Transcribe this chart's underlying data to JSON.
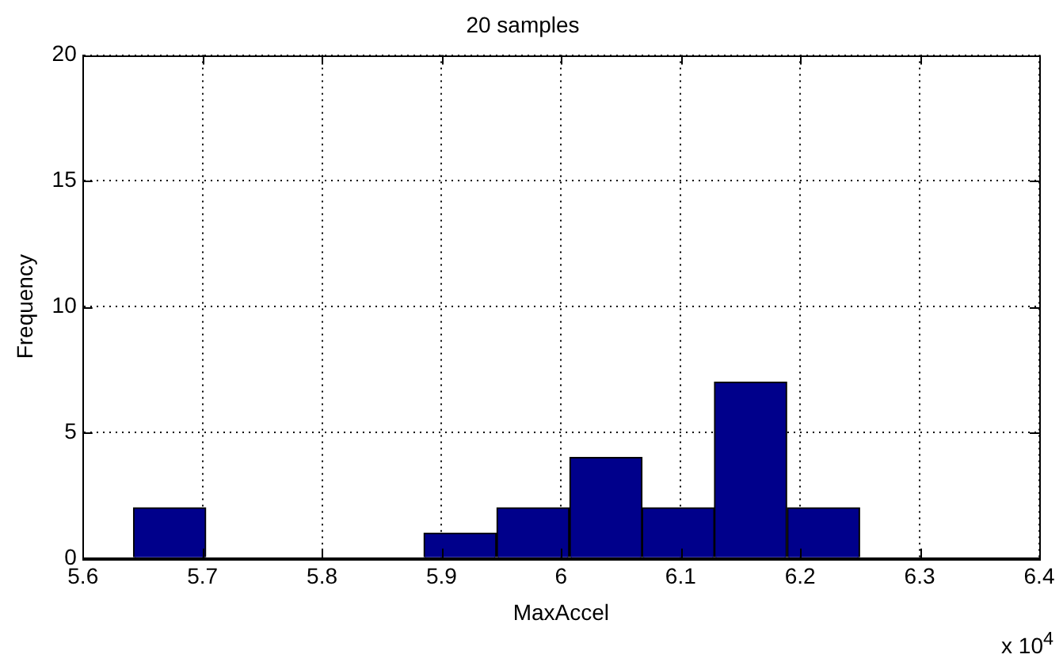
{
  "chart_data": {
    "type": "histogram",
    "title": "20 samples",
    "xlabel": "MaxAccel",
    "ylabel": "Frequency",
    "bins": [
      5.642,
      5.703,
      5.764,
      5.824,
      5.885,
      5.946,
      6.007,
      6.068,
      6.128,
      6.189,
      6.25
    ],
    "values": [
      2,
      0,
      0,
      0,
      1,
      2,
      4,
      2,
      7,
      2
    ],
    "color": "#00008b",
    "xlim": [
      5.6,
      6.4
    ],
    "xticks": [
      5.6,
      5.7,
      5.8,
      5.9,
      6,
      6.1,
      6.2,
      6.3,
      6.4
    ],
    "ylim": [
      0,
      20
    ],
    "yticks": [
      0,
      5,
      10,
      15,
      20
    ],
    "grid": true,
    "annotations": [
      "x 10$^{4}$"
    ]
  }
}
